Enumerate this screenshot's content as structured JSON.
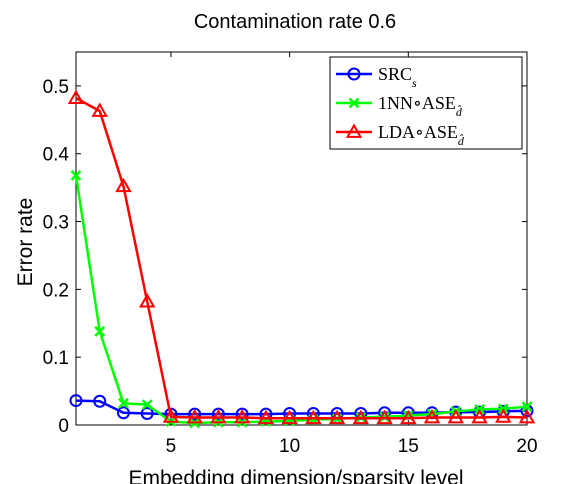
{
  "chart_data": {
    "type": "line",
    "title": "Contamination rate 0.6",
    "xlabel": "Embedding dimension/sparsity level",
    "ylabel": "Error rate",
    "xlim": [
      1,
      20
    ],
    "ylim": [
      0,
      0.55
    ],
    "xticks": [
      5,
      10,
      15,
      20
    ],
    "xtick_labels": [
      "5",
      "10",
      "15",
      "20"
    ],
    "yticks": [
      0,
      0.1,
      0.2,
      0.3,
      0.4,
      0.5
    ],
    "ytick_labels": [
      "0",
      "0.1",
      "0.2",
      "0.3",
      "0.4",
      "0.5"
    ],
    "grid": false,
    "legend_position": "top-right",
    "x": [
      1,
      2,
      3,
      4,
      5,
      6,
      7,
      8,
      9,
      10,
      11,
      12,
      13,
      14,
      15,
      16,
      17,
      18,
      19,
      20
    ],
    "series": [
      {
        "name": "SRC",
        "name_subscript": "s",
        "color": "#0000ff",
        "marker": "circle",
        "values": [
          0.036,
          0.035,
          0.018,
          0.017,
          0.016,
          0.016,
          0.016,
          0.016,
          0.016,
          0.017,
          0.017,
          0.017,
          0.017,
          0.018,
          0.018,
          0.018,
          0.019,
          0.019,
          0.02,
          0.021
        ]
      },
      {
        "name": "1NN∘ASE",
        "name_subscript": "d̂",
        "color": "#00ff00",
        "marker": "x",
        "values": [
          0.368,
          0.138,
          0.032,
          0.03,
          0.005,
          0.003,
          0.004,
          0.004,
          0.005,
          0.006,
          0.008,
          0.009,
          0.011,
          0.012,
          0.014,
          0.016,
          0.02,
          0.023,
          0.024,
          0.027
        ]
      },
      {
        "name": "LDA∘ASE",
        "name_subscript": "d̂",
        "color": "#ff0000",
        "marker": "triangle",
        "values": [
          0.482,
          0.463,
          0.352,
          0.182,
          0.012,
          0.011,
          0.011,
          0.011,
          0.01,
          0.01,
          0.01,
          0.01,
          0.01,
          0.01,
          0.01,
          0.011,
          0.011,
          0.011,
          0.012,
          0.011
        ]
      }
    ]
  }
}
